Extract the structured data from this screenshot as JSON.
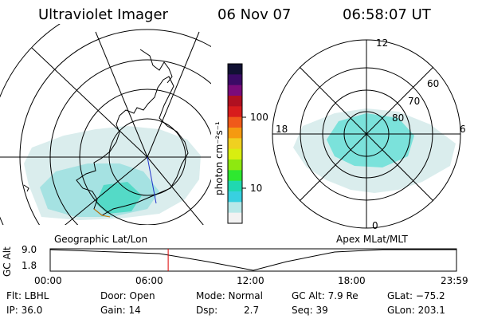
{
  "header": {
    "instrument": "Ultraviolet Imager",
    "date": "06 Nov 07",
    "time": "06:58:07 UT"
  },
  "colorbar": {
    "unit": "photon cm⁻²s⁻¹",
    "ticks": [
      "100",
      "10"
    ],
    "colors": [
      "#111133",
      "#3b0a66",
      "#7a0b7a",
      "#b01020",
      "#d81c1c",
      "#f05a1a",
      "#f59a10",
      "#f0d020",
      "#d8ee10",
      "#8ee810",
      "#2ee830",
      "#20d8b0",
      "#38d0e0",
      "#b8e8e8",
      "#f2f2f2"
    ]
  },
  "left_panel": {
    "label": "Geographic Lat/Lon"
  },
  "right_panel": {
    "label": "Apex MLat/MLT",
    "mlt_labels": {
      "top": "12",
      "left": "18",
      "right": "6",
      "bottom": "0"
    },
    "lat_labels": [
      "60",
      "70",
      "80"
    ]
  },
  "timeline": {
    "ylabel": "GC Alt",
    "y_ticks": [
      "9.0",
      "1.8"
    ],
    "x_ticks": [
      "00:00",
      "06:00",
      "12:00",
      "18:00",
      "23:59"
    ],
    "cursor_hours": 6.97
  },
  "footer": {
    "filter": "Flt: LBHL",
    "ip": "IP: 36.0",
    "door": "Door: Open",
    "gain": "Gain: 14",
    "mode": "Mode: Normal",
    "dsp_label": "Dsp:",
    "dsp_value": "2.7",
    "gc_alt": "GC Alt: 7.9 Re",
    "seq": "Seq: 39",
    "glat": "GLat: −75.2",
    "glon": "GLon: 203.1"
  }
}
